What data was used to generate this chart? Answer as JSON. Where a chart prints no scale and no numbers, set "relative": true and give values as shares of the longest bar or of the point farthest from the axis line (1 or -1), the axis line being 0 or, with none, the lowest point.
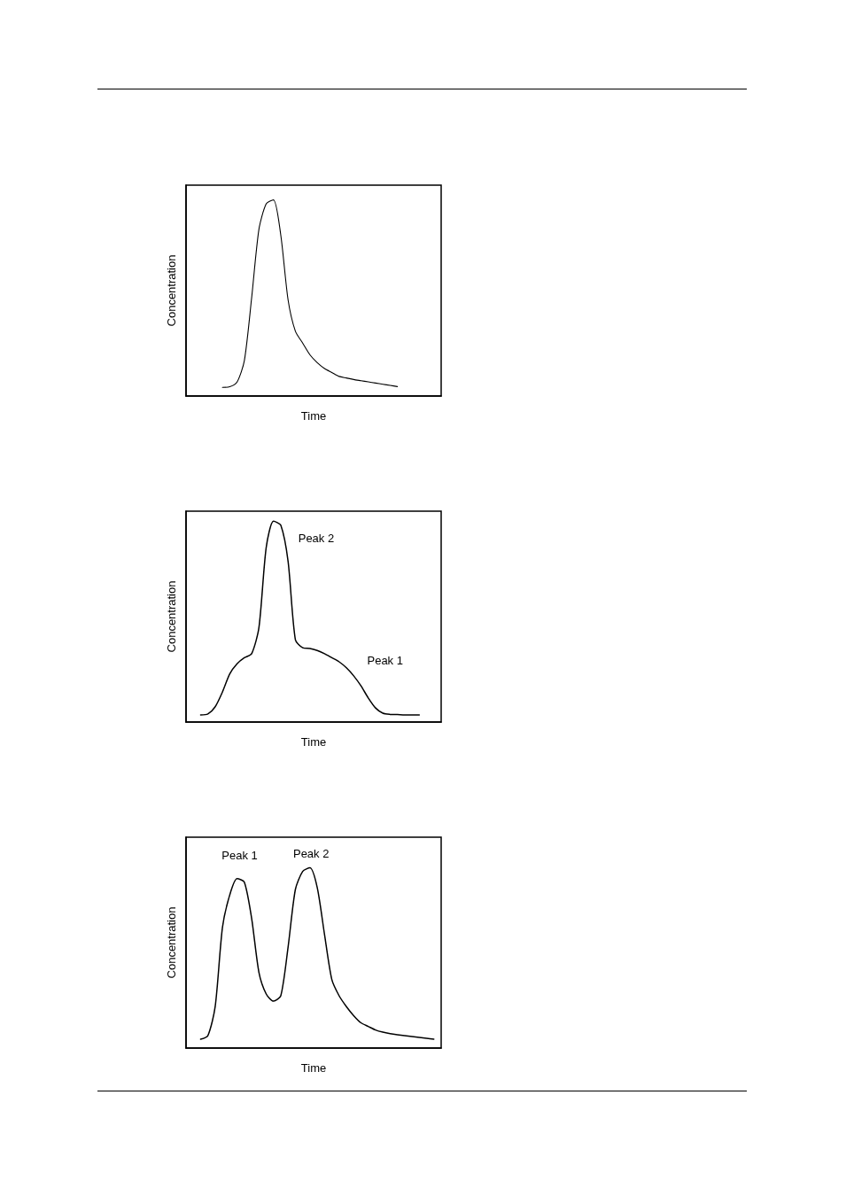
{
  "chart_data": [
    {
      "type": "line",
      "relative": true,
      "xlabel": "Time",
      "ylabel": "Concentration",
      "categories": [
        null,
        null,
        null,
        null,
        null,
        null,
        null,
        null,
        null,
        null,
        null,
        null,
        null,
        null,
        null,
        null,
        null,
        null,
        null,
        null,
        null,
        null,
        null,
        null,
        null,
        null,
        null,
        null,
        null,
        null,
        null,
        null,
        null,
        null,
        null,
        null
      ],
      "series": [
        {
          "color": "#000000",
          "values": [
            null,
            null,
            null,
            null,
            null,
            0.044,
            0.047,
            0.071,
            0.18,
            0.5,
            0.85,
            0.98,
            1,
            0.82,
            0.49,
            0.33,
            0.27,
            0.21,
            0.17,
            0.14,
            0.12,
            0.1,
            0.092,
            0.084,
            0.078,
            0.072,
            0.066,
            0.06,
            0.054,
            0.048,
            null,
            null,
            null,
            null,
            null,
            null
          ]
        }
      ]
    },
    {
      "type": "line",
      "relative": true,
      "xlabel": "Time",
      "ylabel": "Concentration",
      "categories": [
        null,
        null,
        null,
        null,
        null,
        null,
        null,
        null,
        null,
        null,
        null,
        null,
        null,
        null,
        null,
        null,
        null,
        null,
        null,
        null,
        null,
        null,
        null,
        null,
        null,
        null,
        null,
        null,
        null,
        null,
        null,
        null,
        null,
        null,
        null,
        null
      ],
      "series": [
        {
          "color": "#000000",
          "values": [
            null,
            null,
            0.035,
            0.04,
            0.076,
            0.15,
            0.24,
            0.29,
            0.32,
            0.34,
            0.47,
            0.87,
            1,
            0.98,
            0.8,
            0.41,
            0.37,
            0.366,
            0.356,
            0.34,
            0.32,
            0.3,
            0.27,
            0.23,
            0.18,
            0.12,
            0.07,
            0.044,
            0.038,
            0.037,
            0.035,
            0.035,
            0.035,
            null,
            null,
            null
          ]
        }
      ],
      "annotations": [
        "Peak 2",
        "Peak 1"
      ]
    },
    {
      "type": "line",
      "relative": true,
      "xlabel": "Time",
      "ylabel": "Concentration",
      "categories": [
        null,
        null,
        null,
        null,
        null,
        null,
        null,
        null,
        null,
        null,
        null,
        null,
        null,
        null,
        null,
        null,
        null,
        null,
        null,
        null,
        null,
        null,
        null,
        null,
        null,
        null,
        null,
        null,
        null,
        null,
        null,
        null,
        null,
        null,
        null,
        null
      ],
      "series": [
        {
          "color": "#000000",
          "values": [
            null,
            null,
            0.049,
            0.069,
            0.23,
            0.67,
            0.85,
            0.94,
            0.92,
            0.72,
            0.42,
            0.3,
            0.26,
            0.29,
            0.56,
            0.88,
            0.98,
            1,
            0.89,
            0.63,
            0.38,
            0.29,
            0.23,
            0.18,
            0.14,
            0.12,
            0.1,
            0.088,
            0.08,
            0.074,
            0.069,
            0.064,
            0.059,
            0.054,
            0.049,
            null
          ]
        }
      ],
      "annotations": [
        "Peak 1",
        "Peak 2"
      ]
    }
  ]
}
